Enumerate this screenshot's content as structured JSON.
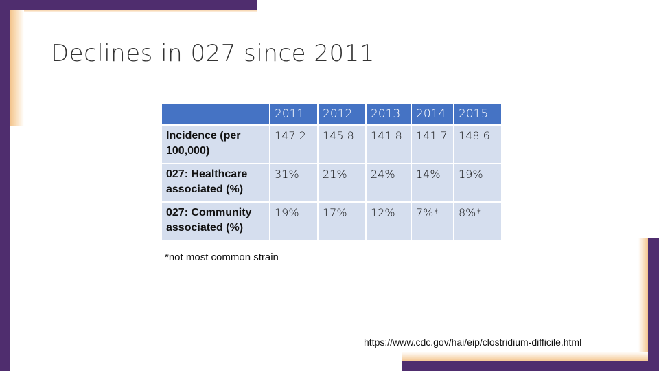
{
  "slide": {
    "title": "Declines in 027 since 2011",
    "footnote": "*not most common strain",
    "source_url": "https://www.cdc.gov/hai/eip/clostridium-difficile.html"
  },
  "table": {
    "header": [
      "",
      "2011",
      "2012",
      "2013",
      "2014",
      "2015"
    ],
    "rows": [
      {
        "label": "Incidence (per 100,000)",
        "values": [
          "147.2",
          "145.8",
          "141.8",
          "141.7",
          "148.6"
        ]
      },
      {
        "label": "027: Healthcare associated (%)",
        "values": [
          "31%",
          "21%",
          "24%",
          "14%",
          "19%"
        ]
      },
      {
        "label": "027: Community associated (%)",
        "values": [
          "19%",
          "17%",
          "12%",
          "7%*",
          "8%*"
        ]
      }
    ]
  },
  "colors": {
    "accent_purple": "#4f2d6e",
    "accent_orange": "#f4c58e",
    "table_header": "#4573c4",
    "table_cell": "#d5deee"
  }
}
